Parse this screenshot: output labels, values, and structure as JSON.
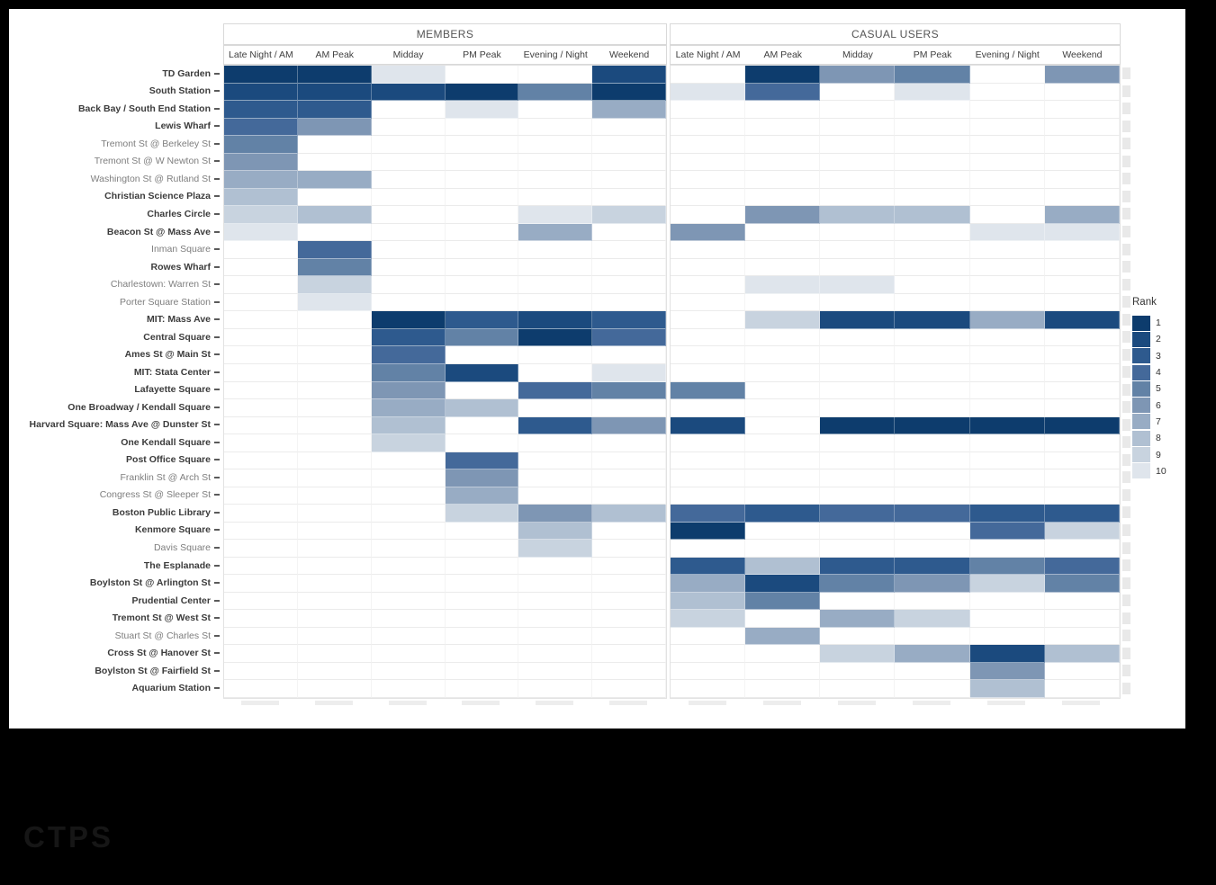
{
  "header": {
    "facets": [
      {
        "label": "MEMBERS"
      },
      {
        "label": "CASUAL USERS"
      }
    ],
    "columns": [
      "Late Night / AM",
      "AM Peak",
      "Midday",
      "PM Peak",
      "Evening / Night",
      "Weekend"
    ]
  },
  "legend": {
    "title": "Rank",
    "ranks": [
      1,
      2,
      3,
      4,
      5,
      6,
      7,
      8,
      9,
      10
    ],
    "colors": [
      "#0d3c6d",
      "#1b4a7e",
      "#2e5a8e",
      "#44699a",
      "#6282a6",
      "#7e96b4",
      "#98acc4",
      "#b0c0d2",
      "#c8d3df",
      "#dfe5ec"
    ]
  },
  "watermark": "CTPS",
  "chart_data": {
    "type": "heatmap",
    "title": "",
    "facets": [
      "MEMBERS",
      "CASUAL USERS"
    ],
    "time_periods": [
      "Late Night / AM",
      "AM Peak",
      "Midday",
      "PM Peak",
      "Evening / Night",
      "Weekend"
    ],
    "value_meaning": "Rank 1 (darkest) to 10 (lightest); blank = not in top 10",
    "rank_domain": [
      1,
      10
    ],
    "rows": [
      {
        "station": "TD Garden",
        "emphasis": true,
        "members": [
          1,
          1,
          10,
          null,
          null,
          2
        ],
        "casual": [
          null,
          1,
          6,
          5,
          null,
          6
        ]
      },
      {
        "station": "South Station",
        "emphasis": true,
        "members": [
          2,
          2,
          2,
          1,
          5,
          1
        ],
        "casual": [
          10,
          4,
          null,
          10,
          null,
          null
        ]
      },
      {
        "station": "Back Bay / South End Station",
        "emphasis": true,
        "members": [
          3,
          3,
          null,
          10,
          null,
          7
        ],
        "casual": [
          null,
          null,
          null,
          null,
          null,
          null
        ]
      },
      {
        "station": "Lewis Wharf",
        "emphasis": true,
        "members": [
          4,
          6,
          null,
          null,
          null,
          null
        ],
        "casual": [
          null,
          null,
          null,
          null,
          null,
          null
        ]
      },
      {
        "station": "Tremont St @ Berkeley St",
        "emphasis": false,
        "members": [
          5,
          null,
          null,
          null,
          null,
          null
        ],
        "casual": [
          null,
          null,
          null,
          null,
          null,
          null
        ]
      },
      {
        "station": "Tremont St @ W Newton St",
        "emphasis": false,
        "members": [
          6,
          null,
          null,
          null,
          null,
          null
        ],
        "casual": [
          null,
          null,
          null,
          null,
          null,
          null
        ]
      },
      {
        "station": "Washington St @ Rutland St",
        "emphasis": false,
        "members": [
          7,
          7,
          null,
          null,
          null,
          null
        ],
        "casual": [
          null,
          null,
          null,
          null,
          null,
          null
        ]
      },
      {
        "station": "Christian Science Plaza",
        "emphasis": true,
        "members": [
          8,
          null,
          null,
          null,
          null,
          null
        ],
        "casual": [
          null,
          null,
          null,
          null,
          null,
          null
        ]
      },
      {
        "station": "Charles Circle",
        "emphasis": true,
        "members": [
          9,
          8,
          null,
          null,
          10,
          9
        ],
        "casual": [
          null,
          6,
          8,
          8,
          null,
          7
        ]
      },
      {
        "station": "Beacon St @ Mass Ave",
        "emphasis": true,
        "members": [
          10,
          null,
          null,
          null,
          7,
          null
        ],
        "casual": [
          6,
          null,
          null,
          null,
          10,
          10
        ]
      },
      {
        "station": "Inman Square",
        "emphasis": false,
        "members": [
          null,
          4,
          null,
          null,
          null,
          null
        ],
        "casual": [
          null,
          null,
          null,
          null,
          null,
          null
        ]
      },
      {
        "station": "Rowes Wharf",
        "emphasis": true,
        "members": [
          null,
          5,
          null,
          null,
          null,
          null
        ],
        "casual": [
          null,
          null,
          null,
          null,
          null,
          null
        ]
      },
      {
        "station": "Charlestown: Warren St",
        "emphasis": false,
        "members": [
          null,
          9,
          null,
          null,
          null,
          null
        ],
        "casual": [
          null,
          10,
          10,
          null,
          null,
          null
        ]
      },
      {
        "station": "Porter Square Station",
        "emphasis": false,
        "members": [
          null,
          10,
          null,
          null,
          null,
          null
        ],
        "casual": [
          null,
          null,
          null,
          null,
          null,
          null
        ]
      },
      {
        "station": "MIT: Mass Ave",
        "emphasis": true,
        "members": [
          null,
          null,
          1,
          3,
          2,
          3
        ],
        "casual": [
          null,
          9,
          2,
          2,
          7,
          2
        ]
      },
      {
        "station": "Central Square",
        "emphasis": true,
        "members": [
          null,
          null,
          3,
          5,
          1,
          4
        ],
        "casual": [
          null,
          null,
          null,
          null,
          null,
          null
        ]
      },
      {
        "station": "Ames St @ Main St",
        "emphasis": true,
        "members": [
          null,
          null,
          4,
          null,
          null,
          null
        ],
        "casual": [
          null,
          null,
          null,
          null,
          null,
          null
        ]
      },
      {
        "station": "MIT: Stata Center",
        "emphasis": true,
        "members": [
          null,
          null,
          5,
          2,
          null,
          10
        ],
        "casual": [
          null,
          null,
          null,
          null,
          null,
          null
        ]
      },
      {
        "station": "Lafayette Square",
        "emphasis": true,
        "members": [
          null,
          null,
          6,
          null,
          4,
          5
        ],
        "casual": [
          5,
          null,
          null,
          null,
          null,
          null
        ]
      },
      {
        "station": "One Broadway / Kendall Square",
        "emphasis": true,
        "members": [
          null,
          null,
          7,
          8,
          null,
          null
        ],
        "casual": [
          null,
          null,
          null,
          null,
          null,
          null
        ]
      },
      {
        "station": "Harvard Square: Mass Ave @ Dunster St",
        "emphasis": true,
        "members": [
          null,
          null,
          8,
          null,
          3,
          6
        ],
        "casual": [
          2,
          null,
          1,
          1,
          1,
          1
        ]
      },
      {
        "station": "One Kendall Square",
        "emphasis": true,
        "members": [
          null,
          null,
          9,
          null,
          null,
          null
        ],
        "casual": [
          null,
          null,
          null,
          null,
          null,
          null
        ]
      },
      {
        "station": "Post Office Square",
        "emphasis": true,
        "members": [
          null,
          null,
          null,
          4,
          null,
          null
        ],
        "casual": [
          null,
          null,
          null,
          null,
          null,
          null
        ]
      },
      {
        "station": "Franklin St @ Arch St",
        "emphasis": false,
        "members": [
          null,
          null,
          null,
          6,
          null,
          null
        ],
        "casual": [
          null,
          null,
          null,
          null,
          null,
          null
        ]
      },
      {
        "station": "Congress St @ Sleeper St",
        "emphasis": false,
        "members": [
          null,
          null,
          null,
          7,
          null,
          null
        ],
        "casual": [
          null,
          null,
          null,
          null,
          null,
          null
        ]
      },
      {
        "station": "Boston Public Library",
        "emphasis": true,
        "members": [
          null,
          null,
          null,
          9,
          6,
          8
        ],
        "casual": [
          4,
          3,
          4,
          4,
          3,
          3
        ]
      },
      {
        "station": "Kenmore Square",
        "emphasis": true,
        "members": [
          null,
          null,
          null,
          null,
          8,
          null
        ],
        "casual": [
          1,
          null,
          null,
          null,
          4,
          9
        ]
      },
      {
        "station": "Davis Square",
        "emphasis": false,
        "members": [
          null,
          null,
          null,
          null,
          9,
          null
        ],
        "casual": [
          null,
          null,
          null,
          null,
          null,
          null
        ]
      },
      {
        "station": "The Esplanade",
        "emphasis": true,
        "members": [
          null,
          null,
          null,
          null,
          null,
          null
        ],
        "casual": [
          3,
          8,
          3,
          3,
          5,
          4
        ]
      },
      {
        "station": "Boylston St @ Arlington St",
        "emphasis": true,
        "members": [
          null,
          null,
          null,
          null,
          null,
          null
        ],
        "casual": [
          7,
          2,
          5,
          6,
          9,
          5
        ]
      },
      {
        "station": "Prudential Center",
        "emphasis": true,
        "members": [
          null,
          null,
          null,
          null,
          null,
          null
        ],
        "casual": [
          8,
          5,
          null,
          null,
          null,
          null
        ]
      },
      {
        "station": "Tremont St @ West St",
        "emphasis": true,
        "members": [
          null,
          null,
          null,
          null,
          null,
          null
        ],
        "casual": [
          9,
          null,
          7,
          9,
          null,
          null
        ]
      },
      {
        "station": "Stuart St @ Charles St",
        "emphasis": false,
        "members": [
          null,
          null,
          null,
          null,
          null,
          null
        ],
        "casual": [
          null,
          7,
          null,
          null,
          null,
          null
        ]
      },
      {
        "station": "Cross St @ Hanover St",
        "emphasis": true,
        "members": [
          null,
          null,
          null,
          null,
          null,
          null
        ],
        "casual": [
          null,
          null,
          9,
          7,
          2,
          8
        ]
      },
      {
        "station": "Boylston St @ Fairfield St",
        "emphasis": true,
        "members": [
          null,
          null,
          null,
          null,
          null,
          null
        ],
        "casual": [
          null,
          null,
          null,
          null,
          6,
          null
        ]
      },
      {
        "station": "Aquarium Station",
        "emphasis": true,
        "members": [
          null,
          null,
          null,
          null,
          null,
          null
        ],
        "casual": [
          null,
          null,
          null,
          null,
          8,
          null
        ]
      }
    ]
  }
}
